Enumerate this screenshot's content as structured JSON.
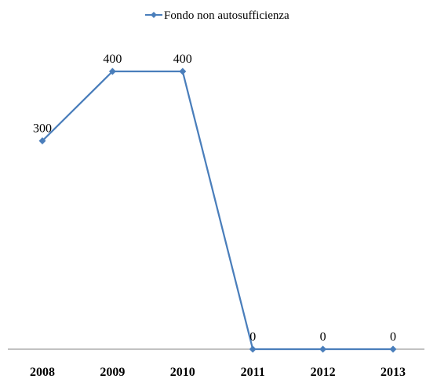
{
  "chart_data": {
    "type": "line",
    "categories": [
      "2008",
      "2009",
      "2010",
      "2011",
      "2012",
      "2013"
    ],
    "series": [
      {
        "name": "Fondo non autosufficienza",
        "values": [
          300,
          400,
          400,
          0,
          0,
          0
        ],
        "color": "#4a7ebb",
        "marker": "diamond"
      }
    ],
    "data_labels": [
      "300",
      "400",
      "400",
      "0",
      "0",
      "0"
    ],
    "xlabel": "",
    "ylabel": "",
    "ylim": [
      0,
      400
    ],
    "grid": false,
    "legend": "top-center",
    "axis_color": "#868686"
  }
}
